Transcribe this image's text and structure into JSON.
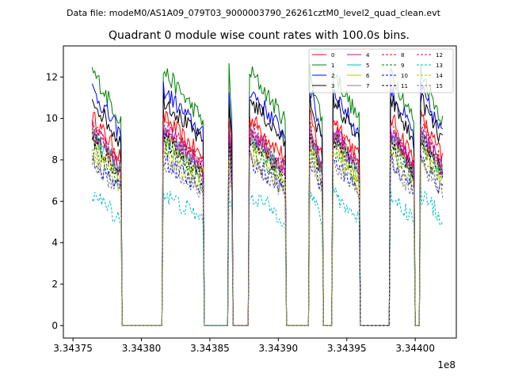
{
  "chart_data": {
    "type": "line",
    "suptitle": "Data file: modeM0/AS1A09_079T03_9000003790_26261cztM0_level2_quad_clean.evt",
    "title": "Quadrant 0 module wise count rates with 100.0s bins.",
    "xlabel": "",
    "ylabel": "",
    "x_offset_label": "1e8",
    "xlim": [
      3.343743,
      3.34403
    ],
    "ylim": [
      -0.6,
      13.5
    ],
    "xticks": [
      3.34375,
      3.3438,
      3.34385,
      3.3439,
      3.34395,
      3.344
    ],
    "xtick_labels": [
      "3.34375",
      "3.34380",
      "3.34385",
      "3.34390",
      "3.34395",
      "3.34400"
    ],
    "yticks": [
      0,
      2,
      4,
      6,
      8,
      10,
      12
    ],
    "ytick_labels": [
      "0",
      "2",
      "4",
      "6",
      "8",
      "10",
      "12"
    ],
    "legend_position": "top-right",
    "legend_columns": 4,
    "grid": false,
    "on_segments": [
      [
        3.343764,
        3.343785
      ],
      [
        3.343816,
        3.343845
      ],
      [
        3.343864,
        3.343866
      ],
      [
        3.343879,
        3.343905
      ],
      [
        3.343923,
        3.343932
      ],
      [
        3.34394,
        3.343959
      ],
      [
        3.343982,
        3.343999
      ],
      [
        3.344004,
        3.34402
      ]
    ],
    "gap_level": 0.0,
    "series": [
      {
        "name": "0",
        "color": "#ff0000",
        "dash": "solid",
        "level": 9.0
      },
      {
        "name": "1",
        "color": "#008000",
        "dash": "solid",
        "level": 11.0
      },
      {
        "name": "2",
        "color": "#0000ff",
        "dash": "solid",
        "level": 10.2
      },
      {
        "name": "3",
        "color": "#000000",
        "dash": "solid",
        "level": 9.8
      },
      {
        "name": "4",
        "color": "#bf00bf",
        "dash": "solid",
        "level": 8.5
      },
      {
        "name": "5",
        "color": "#00bfbf",
        "dash": "solid",
        "level": 8.2
      },
      {
        "name": "6",
        "color": "#bfbf00",
        "dash": "solid",
        "level": 8.0
      },
      {
        "name": "7",
        "color": "#808080",
        "dash": "solid",
        "level": 8.3
      },
      {
        "name": "8",
        "color": "#ff0000",
        "dash": "dashed",
        "level": 8.6
      },
      {
        "name": "9",
        "color": "#008000",
        "dash": "dashed",
        "level": 7.7
      },
      {
        "name": "10",
        "color": "#0000ff",
        "dash": "dashed",
        "level": 7.2
      },
      {
        "name": "11",
        "color": "#000000",
        "dash": "dashed",
        "level": 8.1
      },
      {
        "name": "12",
        "color": "#bf00bf",
        "dash": "dashed",
        "level": 8.3
      },
      {
        "name": "13",
        "color": "#00bfbf",
        "dash": "dashed",
        "level": 5.7
      },
      {
        "name": "14",
        "color": "#bfbf00",
        "dash": "dashed",
        "level": 7.4
      },
      {
        "name": "15",
        "color": "#808080",
        "dash": "dashed",
        "level": 7.1
      }
    ]
  }
}
